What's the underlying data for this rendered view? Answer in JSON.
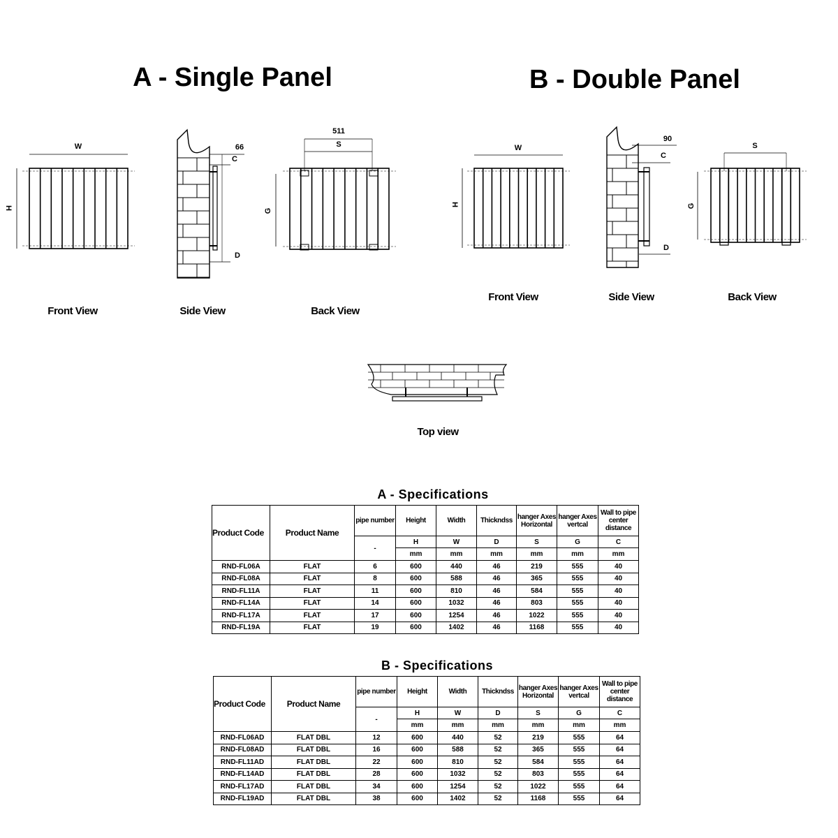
{
  "panel_a": {
    "title": "A - Single Panel",
    "front_label": "Front View",
    "side_label": "Side View",
    "back_label": "Back View",
    "dims": {
      "w": "W",
      "h": "H",
      "side_offset": "66",
      "c": "C",
      "d": "D",
      "back_width": "511",
      "s": "S",
      "g": "G"
    }
  },
  "panel_b": {
    "title": "B - Double Panel",
    "front_label": "Front View",
    "side_label": "Side View",
    "back_label": "Back View",
    "dims": {
      "w": "W",
      "h": "H",
      "side_offset": "90",
      "c": "C",
      "d": "D",
      "s": "S",
      "g": "G"
    }
  },
  "top_view_label": "Top view",
  "spec_a": {
    "title": "A - Specifications",
    "col_code": "Product Code",
    "col_name": "Product Name",
    "columns": [
      {
        "name": "pipe number",
        "symbol": "-",
        "unit": ""
      },
      {
        "name": "Height",
        "symbol": "H",
        "unit": "mm"
      },
      {
        "name": "Width",
        "symbol": "W",
        "unit": "mm"
      },
      {
        "name": "Thickndss",
        "symbol": "D",
        "unit": "mm"
      },
      {
        "name": "hanger Axes Horizontal",
        "symbol": "S",
        "unit": "mm"
      },
      {
        "name": "hanger Axes vertcal",
        "symbol": "G",
        "unit": "mm"
      },
      {
        "name": "Wall to pipe center distance",
        "symbol": "C",
        "unit": "mm"
      }
    ],
    "rows": [
      [
        "RND-FL06A",
        "FLAT",
        "6",
        "600",
        "440",
        "46",
        "219",
        "555",
        "40"
      ],
      [
        "RND-FL08A",
        "FLAT",
        "8",
        "600",
        "588",
        "46",
        "365",
        "555",
        "40"
      ],
      [
        "RND-FL11A",
        "FLAT",
        "11",
        "600",
        "810",
        "46",
        "584",
        "555",
        "40"
      ],
      [
        "RND-FL14A",
        "FLAT",
        "14",
        "600",
        "1032",
        "46",
        "803",
        "555",
        "40"
      ],
      [
        "RND-FL17A",
        "FLAT",
        "17",
        "600",
        "1254",
        "46",
        "1022",
        "555",
        "40"
      ],
      [
        "RND-FL19A",
        "FLAT",
        "19",
        "600",
        "1402",
        "46",
        "1168",
        "555",
        "40"
      ]
    ]
  },
  "spec_b": {
    "title": "B - Specifications",
    "col_code": "Product Code",
    "col_name": "Product Name",
    "columns": [
      {
        "name": "pipe number",
        "symbol": "-",
        "unit": ""
      },
      {
        "name": "Height",
        "symbol": "H",
        "unit": "mm"
      },
      {
        "name": "Width",
        "symbol": "W",
        "unit": "mm"
      },
      {
        "name": "Thickndss",
        "symbol": "D",
        "unit": "mm"
      },
      {
        "name": "hanger Axes Horizontal",
        "symbol": "S",
        "unit": "mm"
      },
      {
        "name": "hanger Axes vertcal",
        "symbol": "G",
        "unit": "mm"
      },
      {
        "name": "Wall to pipe center distance",
        "symbol": "C",
        "unit": "mm"
      }
    ],
    "rows": [
      [
        "RND-FL06AD",
        "FLAT DBL",
        "12",
        "600",
        "440",
        "52",
        "219",
        "555",
        "64"
      ],
      [
        "RND-FL08AD",
        "FLAT DBL",
        "16",
        "600",
        "588",
        "52",
        "365",
        "555",
        "64"
      ],
      [
        "RND-FL11AD",
        "FLAT DBL",
        "22",
        "600",
        "810",
        "52",
        "584",
        "555",
        "64"
      ],
      [
        "RND-FL14AD",
        "FLAT DBL",
        "28",
        "600",
        "1032",
        "52",
        "803",
        "555",
        "64"
      ],
      [
        "RND-FL17AD",
        "FLAT DBL",
        "34",
        "600",
        "1254",
        "52",
        "1022",
        "555",
        "64"
      ],
      [
        "RND-FL19AD",
        "FLAT DBL",
        "38",
        "600",
        "1402",
        "52",
        "1168",
        "555",
        "64"
      ]
    ]
  }
}
